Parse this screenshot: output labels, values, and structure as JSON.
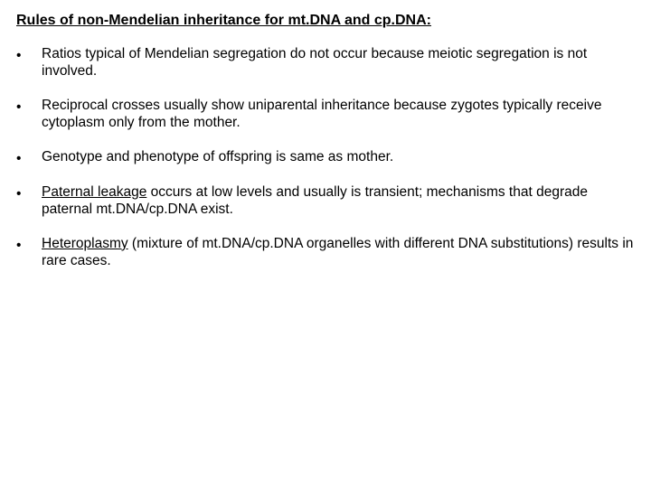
{
  "title": "Rules of non-Mendelian inheritance for mt.DNA and cp.DNA:",
  "bullets": [
    {
      "segments": [
        {
          "text": "Ratios typical of Mendelian segregation do not occur because meiotic segregation is not involved.",
          "underline": false
        }
      ]
    },
    {
      "segments": [
        {
          "text": "Reciprocal crosses usually show uniparental inheritance because zygotes typically receive cytoplasm only from the mother.",
          "underline": false
        }
      ]
    },
    {
      "segments": [
        {
          "text": "Genotype and phenotype of offspring is same as mother.",
          "underline": false
        }
      ]
    },
    {
      "segments": [
        {
          "text": "Paternal leakage",
          "underline": true
        },
        {
          "text": " occurs at low levels and usually is transient; mechanisms that degrade paternal mt.DNA/cp.DNA exist.",
          "underline": false
        }
      ]
    },
    {
      "segments": [
        {
          "text": "Heteroplasmy",
          "underline": true
        },
        {
          "text": " (mixture of mt.DNA/cp.DNA organelles with different DNA substitutions) results in rare cases.",
          "underline": false
        }
      ]
    }
  ],
  "style": {
    "background_color": "#ffffff",
    "text_color": "#000000",
    "font_family": "Comic Sans MS",
    "title_fontsize": 16,
    "body_fontsize": 15.5,
    "bullet_marker": "•"
  }
}
